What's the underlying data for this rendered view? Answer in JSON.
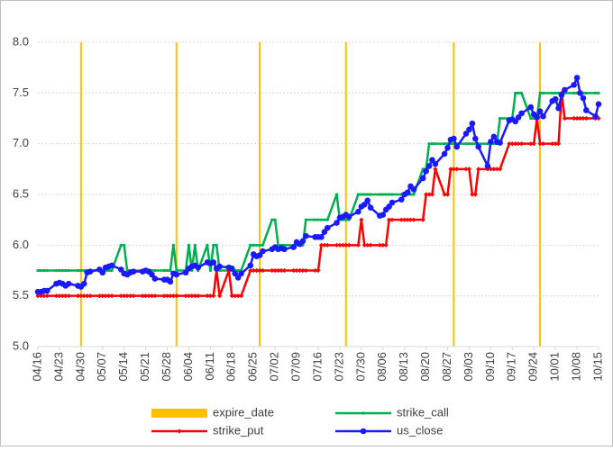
{
  "chart_data": {
    "type": "line",
    "ylim": [
      5.0,
      8.0
    ],
    "yticks": [
      {
        "value": 5.0,
        "label": "5.0"
      },
      {
        "value": 5.5,
        "label": "5.5"
      },
      {
        "value": 6.0,
        "label": "6.0"
      },
      {
        "value": 6.5,
        "label": "6.5"
      },
      {
        "value": 7.0,
        "label": "7.0"
      },
      {
        "value": 7.5,
        "label": "7.5"
      },
      {
        "value": 8.0,
        "label": "8.0"
      }
    ],
    "xlim": [
      "04/16",
      "10/15"
    ],
    "xticks": [
      "04/16",
      "04/23",
      "04/30",
      "05/07",
      "05/14",
      "05/21",
      "05/28",
      "06/04",
      "06/11",
      "06/18",
      "06/25",
      "07/02",
      "07/09",
      "07/16",
      "07/23",
      "07/30",
      "08/06",
      "08/13",
      "08/20",
      "08/27",
      "09/03",
      "09/10",
      "09/17",
      "09/24",
      "10/01",
      "10/08",
      "10/15"
    ],
    "grid": true,
    "legend": "bottom",
    "x": [
      "04/16",
      "04/17",
      "04/18",
      "04/19",
      "04/22",
      "04/23",
      "04/24",
      "04/25",
      "04/26",
      "04/29",
      "04/30",
      "05/01",
      "05/02",
      "05/03",
      "05/06",
      "05/07",
      "05/08",
      "05/09",
      "05/10",
      "05/13",
      "05/14",
      "05/15",
      "05/16",
      "05/17",
      "05/20",
      "05/21",
      "05/22",
      "05/23",
      "05/24",
      "05/27",
      "05/28",
      "05/29",
      "05/30",
      "05/31",
      "06/03",
      "06/04",
      "06/05",
      "06/06",
      "06/07",
      "06/10",
      "06/11",
      "06/12",
      "06/13",
      "06/14",
      "06/17",
      "06/18",
      "06/19",
      "06/20",
      "06/21",
      "06/24",
      "06/25",
      "06/26",
      "06/27",
      "06/28",
      "07/01",
      "07/02",
      "07/03",
      "07/04",
      "07/05",
      "07/08",
      "07/09",
      "07/10",
      "07/11",
      "07/12",
      "07/15",
      "07/16",
      "07/17",
      "07/18",
      "07/19",
      "07/22",
      "07/23",
      "07/24",
      "07/25",
      "07/26",
      "07/29",
      "07/30",
      "07/31",
      "08/01",
      "08/02",
      "08/05",
      "08/06",
      "08/07",
      "08/08",
      "08/09",
      "08/12",
      "08/13",
      "08/14",
      "08/15",
      "08/16",
      "08/19",
      "08/20",
      "08/21",
      "08/22",
      "08/23",
      "08/26",
      "08/27",
      "08/28",
      "08/29",
      "08/30",
      "09/02",
      "09/03",
      "09/04",
      "09/05",
      "09/06",
      "09/09",
      "09/10",
      "09/11",
      "09/12",
      "09/13",
      "09/16",
      "09/17",
      "09/18",
      "09/19",
      "09/20",
      "09/23",
      "09/24",
      "09/25",
      "09/26",
      "09/27",
      "09/30",
      "10/01",
      "10/02",
      "10/03",
      "10/04",
      "10/07",
      "10/08",
      "10/09",
      "10/10",
      "10/11",
      "10/14",
      "10/15"
    ],
    "series": [
      {
        "name": "expire_date",
        "type": "bar",
        "color": "#ffc000",
        "x": [
          "04/30",
          "05/31",
          "06/27",
          "07/25",
          "08/29",
          "09/26"
        ],
        "values": [
          8.0,
          8.0,
          8.0,
          8.0,
          8.0,
          8.0
        ]
      },
      {
        "name": "strike_call",
        "color": "#00b050",
        "values": [
          5.75,
          5.75,
          5.75,
          5.75,
          5.75,
          5.75,
          5.75,
          5.75,
          5.75,
          5.75,
          5.75,
          5.75,
          5.75,
          5.75,
          5.75,
          5.75,
          5.75,
          5.75,
          5.75,
          6.0,
          6.0,
          5.75,
          5.75,
          5.75,
          5.75,
          5.75,
          5.75,
          5.75,
          5.75,
          5.75,
          5.75,
          5.75,
          6.0,
          5.75,
          5.75,
          6.0,
          5.75,
          6.0,
          5.75,
          6.0,
          5.75,
          6.0,
          6.0,
          5.75,
          5.75,
          5.75,
          5.75,
          5.75,
          5.75,
          6.0,
          6.0,
          6.0,
          6.0,
          6.0,
          6.25,
          6.25,
          6.0,
          6.0,
          6.0,
          6.0,
          6.0,
          6.0,
          6.0,
          6.25,
          6.25,
          6.25,
          6.25,
          6.25,
          6.25,
          6.5,
          6.25,
          6.25,
          6.25,
          6.25,
          6.5,
          6.5,
          6.5,
          6.5,
          6.5,
          6.5,
          6.5,
          6.5,
          6.5,
          6.5,
          6.5,
          6.5,
          6.5,
          6.5,
          6.5,
          6.75,
          6.75,
          7.0,
          7.0,
          7.0,
          7.0,
          7.0,
          7.0,
          7.0,
          7.0,
          7.0,
          7.0,
          7.0,
          7.0,
          7.0,
          7.0,
          7.0,
          7.0,
          7.0,
          7.25,
          7.25,
          7.25,
          7.5,
          7.5,
          7.5,
          7.25,
          7.25,
          7.25,
          7.5,
          7.5,
          7.5,
          7.5,
          7.5,
          7.5,
          7.5,
          7.5,
          7.5,
          7.5,
          7.5,
          7.5,
          7.5,
          7.5
        ]
      },
      {
        "name": "strike_put",
        "color": "#ff0000",
        "values": [
          5.5,
          5.5,
          5.5,
          5.5,
          5.5,
          5.5,
          5.5,
          5.5,
          5.5,
          5.5,
          5.5,
          5.5,
          5.5,
          5.5,
          5.5,
          5.5,
          5.5,
          5.5,
          5.5,
          5.5,
          5.5,
          5.5,
          5.5,
          5.5,
          5.5,
          5.5,
          5.5,
          5.5,
          5.5,
          5.5,
          5.5,
          5.5,
          5.5,
          5.5,
          5.5,
          5.5,
          5.5,
          5.5,
          5.5,
          5.5,
          5.5,
          5.5,
          5.75,
          5.5,
          5.75,
          5.5,
          5.5,
          5.5,
          5.5,
          5.75,
          5.75,
          5.75,
          5.75,
          5.75,
          5.75,
          5.75,
          5.75,
          5.75,
          5.75,
          5.75,
          5.75,
          5.75,
          5.75,
          5.75,
          5.75,
          5.75,
          6.0,
          6.0,
          6.0,
          6.0,
          6.0,
          6.0,
          6.0,
          6.0,
          6.0,
          6.25,
          6.0,
          6.0,
          6.0,
          6.0,
          6.0,
          6.0,
          6.25,
          6.25,
          6.25,
          6.25,
          6.25,
          6.25,
          6.25,
          6.25,
          6.5,
          6.5,
          6.5,
          6.75,
          6.5,
          6.5,
          6.75,
          6.75,
          6.75,
          6.75,
          6.75,
          6.5,
          6.5,
          6.75,
          6.75,
          6.75,
          6.75,
          6.75,
          6.75,
          7.0,
          7.0,
          7.0,
          7.0,
          7.0,
          7.0,
          7.0,
          7.25,
          7.0,
          7.0,
          7.0,
          7.0,
          7.0,
          7.5,
          7.25,
          7.25,
          7.25,
          7.25,
          7.25,
          7.25,
          7.25,
          7.25
        ]
      },
      {
        "name": "us_close",
        "color": "#1a1aff",
        "values": [
          5.54,
          5.54,
          5.55,
          5.55,
          5.62,
          5.63,
          5.62,
          5.6,
          5.62,
          5.6,
          5.59,
          5.62,
          5.73,
          5.74,
          5.76,
          5.73,
          5.78,
          5.79,
          5.8,
          5.76,
          5.72,
          5.71,
          5.73,
          5.74,
          5.74,
          5.75,
          5.74,
          5.71,
          5.67,
          5.66,
          5.66,
          5.64,
          5.72,
          5.71,
          5.73,
          5.77,
          5.79,
          5.8,
          5.78,
          5.83,
          5.82,
          5.83,
          5.77,
          5.79,
          5.78,
          5.77,
          5.72,
          5.68,
          5.72,
          5.8,
          5.91,
          5.89,
          5.9,
          5.94,
          5.96,
          5.98,
          5.96,
          5.97,
          5.96,
          5.98,
          6.03,
          6.01,
          6.04,
          6.09,
          6.08,
          6.08,
          6.08,
          6.13,
          6.17,
          6.22,
          6.27,
          6.28,
          6.3,
          6.28,
          6.33,
          6.38,
          6.4,
          6.44,
          6.37,
          6.29,
          6.3,
          6.35,
          6.38,
          6.42,
          6.45,
          6.5,
          6.52,
          6.58,
          6.55,
          6.66,
          6.73,
          6.78,
          6.84,
          6.8,
          6.9,
          6.96,
          7.04,
          7.05,
          6.97,
          7.1,
          7.14,
          7.2,
          7.05,
          6.97,
          6.78,
          7.02,
          7.07,
          7.02,
          7.01,
          7.23,
          7.24,
          7.22,
          7.26,
          7.3,
          7.36,
          7.29,
          7.26,
          7.32,
          7.27,
          7.42,
          7.44,
          7.35,
          7.48,
          7.53,
          7.58,
          7.65,
          7.5,
          7.45,
          7.33,
          7.27,
          7.39
        ]
      }
    ]
  }
}
